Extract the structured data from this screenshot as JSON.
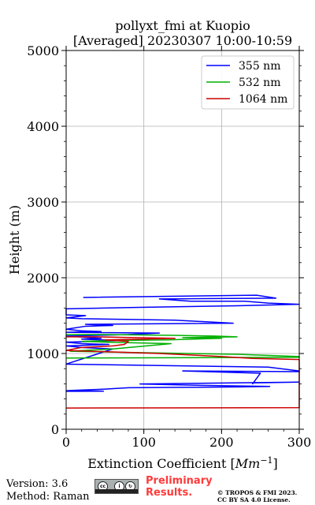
{
  "chart_data": {
    "type": "line",
    "title_lines": [
      "pollyxt_fmi at Kuopio",
      "[Averaged] 20230307 10:00-10:59"
    ],
    "xlabel": "Extinction Coefficient [Mm⁻¹]",
    "ylabel": "Height (m)",
    "xlim": [
      0,
      300
    ],
    "ylim": [
      0,
      5000
    ],
    "xticks": [
      "0",
      "100",
      "200",
      "300"
    ],
    "yticks": [
      "0",
      "1000",
      "2000",
      "3000",
      "4000",
      "5000"
    ],
    "grid": true,
    "legend_position": "top-right",
    "series": [
      {
        "name": "355 nm",
        "color": "#0000ff",
        "points": [
          [
            0,
            500
          ],
          [
            48,
            503
          ],
          [
            0,
            508
          ],
          [
            5,
            512
          ],
          [
            50,
            530
          ],
          [
            80,
            548
          ],
          [
            130,
            552
          ],
          [
            220,
            558
          ],
          [
            262,
            565
          ],
          [
            180,
            578
          ],
          [
            95,
            598
          ],
          [
            300,
            622
          ],
          [
            240,
            612
          ],
          [
            240,
            600
          ],
          [
            250,
            740
          ],
          [
            150,
            770
          ],
          [
            300,
            760
          ],
          [
            300,
            770
          ],
          [
            260,
            820
          ],
          [
            0,
            860
          ],
          [
            60,
            1060
          ],
          [
            20,
            1080
          ],
          [
            0,
            1100
          ],
          [
            55,
            1120
          ],
          [
            20,
            1130
          ],
          [
            0,
            1150
          ],
          [
            70,
            1170
          ],
          [
            20,
            1190
          ],
          [
            45,
            1200
          ],
          [
            0,
            1230
          ],
          [
            80,
            1250
          ],
          [
            120,
            1270
          ],
          [
            0,
            1280
          ],
          [
            45,
            1290
          ],
          [
            20,
            1300
          ],
          [
            0,
            1320
          ],
          [
            25,
            1360
          ],
          [
            60,
            1370
          ],
          [
            25,
            1385
          ],
          [
            215,
            1400
          ],
          [
            140,
            1440
          ],
          [
            20,
            1460
          ],
          [
            0,
            1470
          ],
          [
            25,
            1500
          ],
          [
            0,
            1510
          ],
          [
            0,
            1590
          ],
          [
            95,
            1610
          ],
          [
            220,
            1630
          ],
          [
            300,
            1650
          ],
          [
            260,
            1665
          ],
          [
            230,
            1690
          ],
          [
            160,
            1690
          ],
          [
            120,
            1720
          ],
          [
            270,
            1730
          ],
          [
            245,
            1770
          ],
          [
            22,
            1740
          ]
        ]
      },
      {
        "name": "532 nm",
        "color": "#00b000",
        "points": [
          [
            0,
            940
          ],
          [
            300,
            950
          ],
          [
            300,
            960
          ],
          [
            220,
            990
          ],
          [
            100,
            1010
          ],
          [
            5,
            1030
          ],
          [
            60,
            1060
          ],
          [
            135,
            1130
          ],
          [
            50,
            1150
          ],
          [
            20,
            1160
          ],
          [
            60,
            1170
          ],
          [
            130,
            1180
          ],
          [
            200,
            1200
          ],
          [
            150,
            1210
          ],
          [
            220,
            1220
          ],
          [
            190,
            1230
          ],
          [
            140,
            1240
          ],
          [
            50,
            1250
          ],
          [
            0,
            1250
          ]
        ]
      },
      {
        "name": "1064 nm",
        "color": "#cc0000",
        "points": [
          [
            0,
            280
          ],
          [
            300,
            285
          ],
          [
            300,
            920
          ],
          [
            240,
            935
          ],
          [
            200,
            960
          ],
          [
            120,
            1000
          ],
          [
            0,
            1040
          ],
          [
            20,
            1080
          ],
          [
            60,
            1100
          ],
          [
            75,
            1120
          ],
          [
            80,
            1160
          ],
          [
            50,
            1180
          ],
          [
            100,
            1190
          ],
          [
            140,
            1200
          ],
          [
            90,
            1210
          ],
          [
            40,
            1220
          ],
          [
            0,
            1220
          ]
        ]
      }
    ]
  },
  "footer": {
    "version": "Version: 3.6",
    "method": "Method: Raman",
    "badge_by": "BY",
    "badge_sa": "SA",
    "preliminary_1": "Preliminary",
    "preliminary_2": "Results.",
    "copyright_1": "© TROPOS & FMI 2023.",
    "copyright_2": "CC BY SA 4.0 License."
  }
}
